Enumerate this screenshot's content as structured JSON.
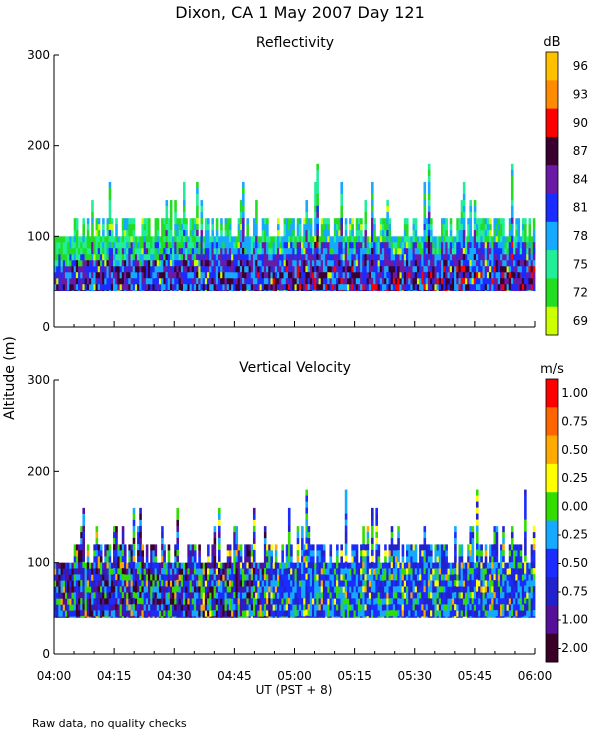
{
  "page": {
    "title": "Dixon, CA   1 May 2007   Day 121",
    "ylabel": "Altitude (m)",
    "xlabel": "UT  (PST + 8)",
    "footnote": "Raw data, no quality checks"
  },
  "chart_data": [
    {
      "type": "heatmap",
      "title": "Reflectivity",
      "units": "dB",
      "ylim": [
        0,
        300
      ],
      "yticks": [
        0,
        100,
        200,
        300
      ],
      "ytick_labels": [
        "0",
        "100",
        "200",
        "300"
      ],
      "xlim": [
        "04:00",
        "06:00"
      ],
      "colorbar_labels": [
        "96",
        "93",
        "90",
        "87",
        "84",
        "81",
        "78",
        "75",
        "72",
        "69"
      ],
      "colorbar_colors": [
        "#ffc000",
        "#ff8c00",
        "#ff0000",
        "#3a0030",
        "#6b1aa6",
        "#1a2cff",
        "#15aaff",
        "#22ee99",
        "#22dd22",
        "#ccff00"
      ],
      "data_bottom": 40,
      "data_top_range": [
        100,
        180
      ]
    },
    {
      "type": "heatmap",
      "title": "Vertical Velocity",
      "units": "m/s",
      "ylim": [
        0,
        300
      ],
      "yticks": [
        0,
        100,
        200,
        300
      ],
      "ytick_labels": [
        "0",
        "100",
        "200",
        "300"
      ],
      "xlim": [
        "04:00",
        "06:00"
      ],
      "xticks": [
        "04:00",
        "04:15",
        "04:30",
        "04:45",
        "05:00",
        "05:15",
        "05:30",
        "05:45",
        "06:00"
      ],
      "colorbar_labels": [
        "1.00",
        "0.75",
        "0.50",
        "0.25",
        "0.00",
        "-0.25",
        "-0.50",
        "-0.75",
        "-1.00",
        "-2.00"
      ],
      "colorbar_colors": [
        "#ff0000",
        "#ff6600",
        "#ffaa00",
        "#ffff00",
        "#33dd00",
        "#15aaff",
        "#1a2cff",
        "#2222cc",
        "#55109a",
        "#3a0028"
      ],
      "data_bottom": 40,
      "data_top_range": [
        100,
        180
      ]
    }
  ],
  "colors": {
    "axis": "#000000",
    "background": "#ffffff"
  }
}
